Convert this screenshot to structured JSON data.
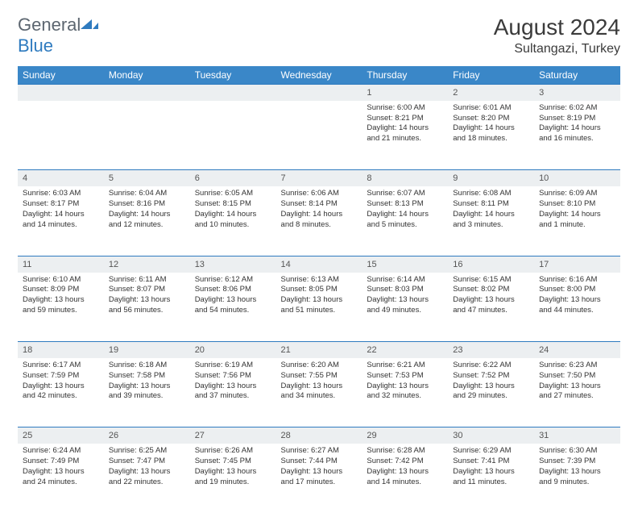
{
  "logo": {
    "text1": "General",
    "text2": "Blue"
  },
  "title": "August 2024",
  "location": "Sultangazi, Turkey",
  "colors": {
    "header_blue": "#3a87c8",
    "accent_blue": "#2f7bbf",
    "daynum_bg": "#eceff1",
    "logo_gray": "#5c6670"
  },
  "day_headers": [
    "Sunday",
    "Monday",
    "Tuesday",
    "Wednesday",
    "Thursday",
    "Friday",
    "Saturday"
  ],
  "weeks": [
    {
      "nums": [
        "",
        "",
        "",
        "",
        "1",
        "2",
        "3"
      ],
      "cells": [
        null,
        null,
        null,
        null,
        {
          "sr": "Sunrise: 6:00 AM",
          "ss": "Sunset: 8:21 PM",
          "d1": "Daylight: 14 hours",
          "d2": "and 21 minutes."
        },
        {
          "sr": "Sunrise: 6:01 AM",
          "ss": "Sunset: 8:20 PM",
          "d1": "Daylight: 14 hours",
          "d2": "and 18 minutes."
        },
        {
          "sr": "Sunrise: 6:02 AM",
          "ss": "Sunset: 8:19 PM",
          "d1": "Daylight: 14 hours",
          "d2": "and 16 minutes."
        }
      ]
    },
    {
      "nums": [
        "4",
        "5",
        "6",
        "7",
        "8",
        "9",
        "10"
      ],
      "cells": [
        {
          "sr": "Sunrise: 6:03 AM",
          "ss": "Sunset: 8:17 PM",
          "d1": "Daylight: 14 hours",
          "d2": "and 14 minutes."
        },
        {
          "sr": "Sunrise: 6:04 AM",
          "ss": "Sunset: 8:16 PM",
          "d1": "Daylight: 14 hours",
          "d2": "and 12 minutes."
        },
        {
          "sr": "Sunrise: 6:05 AM",
          "ss": "Sunset: 8:15 PM",
          "d1": "Daylight: 14 hours",
          "d2": "and 10 minutes."
        },
        {
          "sr": "Sunrise: 6:06 AM",
          "ss": "Sunset: 8:14 PM",
          "d1": "Daylight: 14 hours",
          "d2": "and 8 minutes."
        },
        {
          "sr": "Sunrise: 6:07 AM",
          "ss": "Sunset: 8:13 PM",
          "d1": "Daylight: 14 hours",
          "d2": "and 5 minutes."
        },
        {
          "sr": "Sunrise: 6:08 AM",
          "ss": "Sunset: 8:11 PM",
          "d1": "Daylight: 14 hours",
          "d2": "and 3 minutes."
        },
        {
          "sr": "Sunrise: 6:09 AM",
          "ss": "Sunset: 8:10 PM",
          "d1": "Daylight: 14 hours",
          "d2": "and 1 minute."
        }
      ]
    },
    {
      "nums": [
        "11",
        "12",
        "13",
        "14",
        "15",
        "16",
        "17"
      ],
      "cells": [
        {
          "sr": "Sunrise: 6:10 AM",
          "ss": "Sunset: 8:09 PM",
          "d1": "Daylight: 13 hours",
          "d2": "and 59 minutes."
        },
        {
          "sr": "Sunrise: 6:11 AM",
          "ss": "Sunset: 8:07 PM",
          "d1": "Daylight: 13 hours",
          "d2": "and 56 minutes."
        },
        {
          "sr": "Sunrise: 6:12 AM",
          "ss": "Sunset: 8:06 PM",
          "d1": "Daylight: 13 hours",
          "d2": "and 54 minutes."
        },
        {
          "sr": "Sunrise: 6:13 AM",
          "ss": "Sunset: 8:05 PM",
          "d1": "Daylight: 13 hours",
          "d2": "and 51 minutes."
        },
        {
          "sr": "Sunrise: 6:14 AM",
          "ss": "Sunset: 8:03 PM",
          "d1": "Daylight: 13 hours",
          "d2": "and 49 minutes."
        },
        {
          "sr": "Sunrise: 6:15 AM",
          "ss": "Sunset: 8:02 PM",
          "d1": "Daylight: 13 hours",
          "d2": "and 47 minutes."
        },
        {
          "sr": "Sunrise: 6:16 AM",
          "ss": "Sunset: 8:00 PM",
          "d1": "Daylight: 13 hours",
          "d2": "and 44 minutes."
        }
      ]
    },
    {
      "nums": [
        "18",
        "19",
        "20",
        "21",
        "22",
        "23",
        "24"
      ],
      "cells": [
        {
          "sr": "Sunrise: 6:17 AM",
          "ss": "Sunset: 7:59 PM",
          "d1": "Daylight: 13 hours",
          "d2": "and 42 minutes."
        },
        {
          "sr": "Sunrise: 6:18 AM",
          "ss": "Sunset: 7:58 PM",
          "d1": "Daylight: 13 hours",
          "d2": "and 39 minutes."
        },
        {
          "sr": "Sunrise: 6:19 AM",
          "ss": "Sunset: 7:56 PM",
          "d1": "Daylight: 13 hours",
          "d2": "and 37 minutes."
        },
        {
          "sr": "Sunrise: 6:20 AM",
          "ss": "Sunset: 7:55 PM",
          "d1": "Daylight: 13 hours",
          "d2": "and 34 minutes."
        },
        {
          "sr": "Sunrise: 6:21 AM",
          "ss": "Sunset: 7:53 PM",
          "d1": "Daylight: 13 hours",
          "d2": "and 32 minutes."
        },
        {
          "sr": "Sunrise: 6:22 AM",
          "ss": "Sunset: 7:52 PM",
          "d1": "Daylight: 13 hours",
          "d2": "and 29 minutes."
        },
        {
          "sr": "Sunrise: 6:23 AM",
          "ss": "Sunset: 7:50 PM",
          "d1": "Daylight: 13 hours",
          "d2": "and 27 minutes."
        }
      ]
    },
    {
      "nums": [
        "25",
        "26",
        "27",
        "28",
        "29",
        "30",
        "31"
      ],
      "cells": [
        {
          "sr": "Sunrise: 6:24 AM",
          "ss": "Sunset: 7:49 PM",
          "d1": "Daylight: 13 hours",
          "d2": "and 24 minutes."
        },
        {
          "sr": "Sunrise: 6:25 AM",
          "ss": "Sunset: 7:47 PM",
          "d1": "Daylight: 13 hours",
          "d2": "and 22 minutes."
        },
        {
          "sr": "Sunrise: 6:26 AM",
          "ss": "Sunset: 7:45 PM",
          "d1": "Daylight: 13 hours",
          "d2": "and 19 minutes."
        },
        {
          "sr": "Sunrise: 6:27 AM",
          "ss": "Sunset: 7:44 PM",
          "d1": "Daylight: 13 hours",
          "d2": "and 17 minutes."
        },
        {
          "sr": "Sunrise: 6:28 AM",
          "ss": "Sunset: 7:42 PM",
          "d1": "Daylight: 13 hours",
          "d2": "and 14 minutes."
        },
        {
          "sr": "Sunrise: 6:29 AM",
          "ss": "Sunset: 7:41 PM",
          "d1": "Daylight: 13 hours",
          "d2": "and 11 minutes."
        },
        {
          "sr": "Sunrise: 6:30 AM",
          "ss": "Sunset: 7:39 PM",
          "d1": "Daylight: 13 hours",
          "d2": "and 9 minutes."
        }
      ]
    }
  ]
}
